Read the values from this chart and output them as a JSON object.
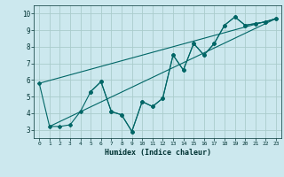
{
  "xlabel": "Humidex (Indice chaleur)",
  "bg_color": "#cce8ee",
  "grid_color": "#aacccc",
  "line_color": "#006666",
  "xlim": [
    -0.5,
    23.5
  ],
  "ylim": [
    2.5,
    10.5
  ],
  "xticks": [
    0,
    1,
    2,
    3,
    4,
    5,
    6,
    7,
    8,
    9,
    10,
    11,
    12,
    13,
    14,
    15,
    16,
    17,
    18,
    19,
    20,
    21,
    22,
    23
  ],
  "yticks": [
    3,
    4,
    5,
    6,
    7,
    8,
    9,
    10
  ],
  "series_main_x": [
    0,
    1,
    2,
    3,
    4,
    5,
    6,
    7,
    8,
    9,
    10,
    11,
    12,
    13,
    14,
    15,
    16,
    17,
    18,
    19,
    20,
    21,
    22,
    23
  ],
  "series_main_y": [
    5.8,
    3.2,
    3.2,
    3.3,
    4.1,
    5.3,
    5.9,
    4.1,
    3.9,
    2.9,
    4.7,
    4.4,
    4.9,
    7.5,
    6.6,
    8.2,
    7.5,
    8.2,
    9.3,
    9.8,
    9.3,
    9.4,
    9.5,
    9.7
  ],
  "series_trend1_x": [
    0,
    23
  ],
  "series_trend1_y": [
    5.8,
    9.7
  ],
  "series_trend2_x": [
    1,
    23
  ],
  "series_trend2_y": [
    3.2,
    9.7
  ],
  "series_upper_x": [
    5,
    6,
    7,
    8,
    9,
    10,
    11,
    12,
    13,
    14,
    15,
    16,
    17,
    18,
    19,
    20,
    21,
    22,
    23
  ],
  "series_upper_y": [
    5.3,
    5.9,
    4.1,
    3.9,
    2.9,
    4.7,
    4.4,
    4.9,
    7.5,
    6.6,
    8.2,
    7.5,
    8.2,
    9.3,
    9.8,
    9.3,
    9.4,
    9.5,
    9.7
  ]
}
